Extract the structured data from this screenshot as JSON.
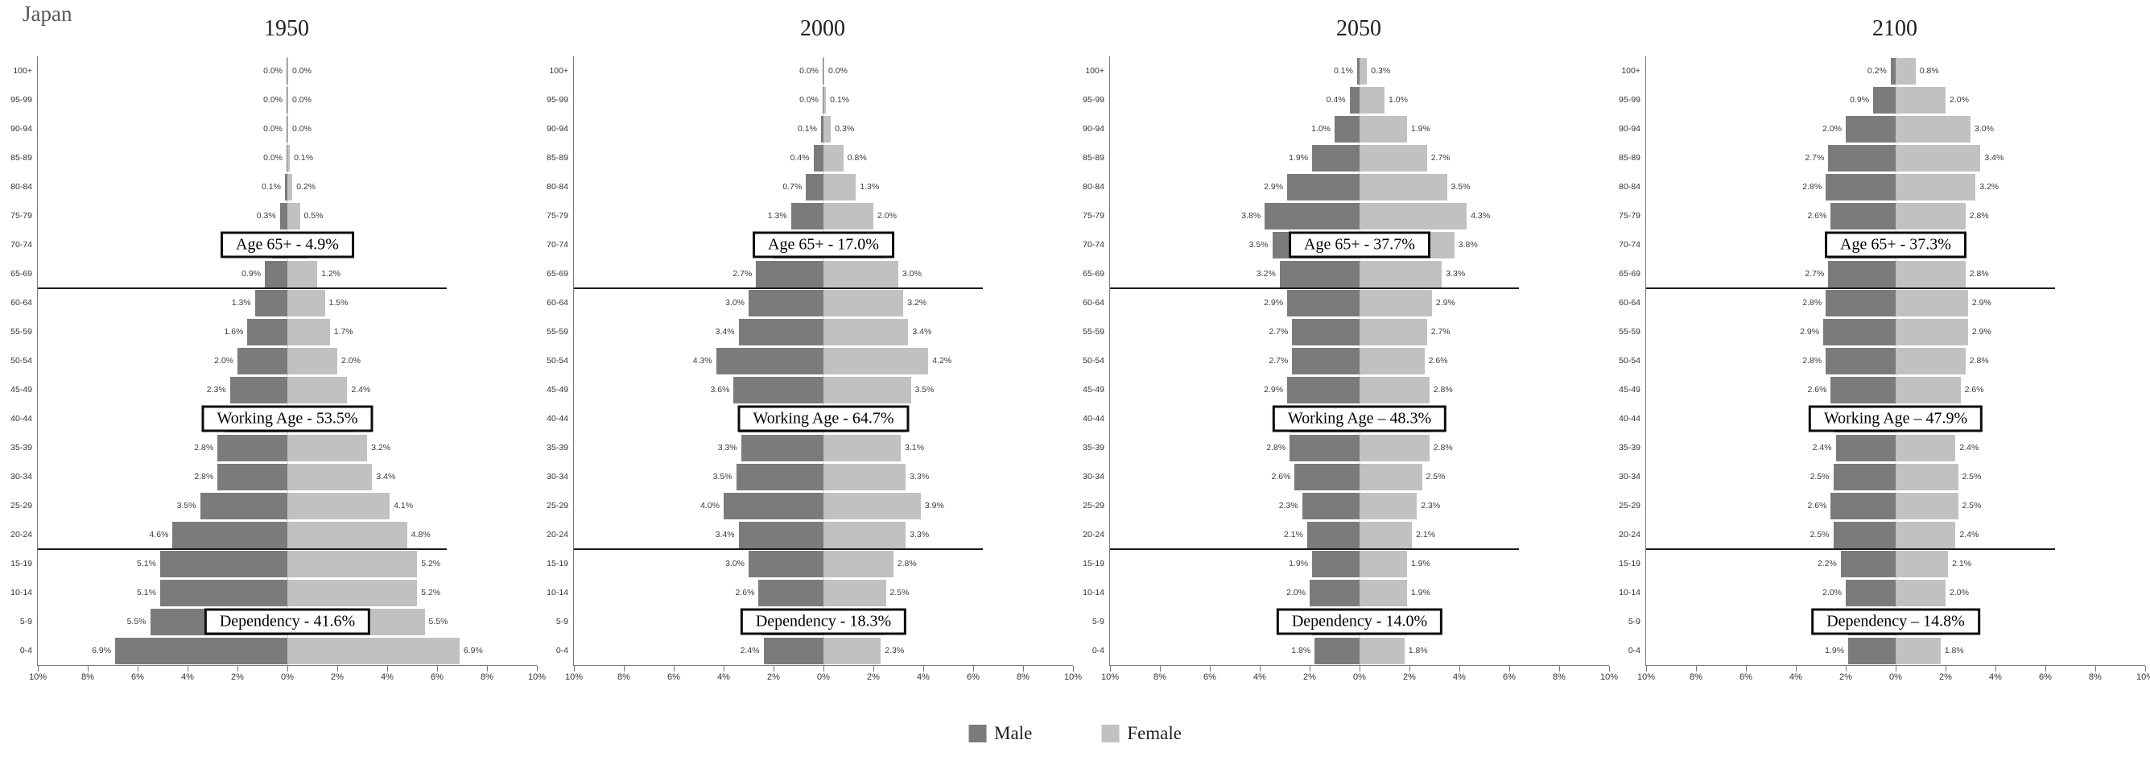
{
  "figure_title": "Japan",
  "colors": {
    "male": "#7b7b7b",
    "female": "#c1c1c1",
    "annotation_border": "#0d0d0d",
    "axis": "#7a7a7a",
    "text": "#333333"
  },
  "legend": {
    "male_label": "Male",
    "female_label": "Female"
  },
  "axis": {
    "x_tick_labels": [
      "10%",
      "8%",
      "6%",
      "4%",
      "2%",
      "0%",
      "2%",
      "4%",
      "6%",
      "8%",
      "10%"
    ],
    "x_max_percent": 10
  },
  "chart_data": {
    "type": "bar",
    "subtype": "population-pyramid",
    "unit": "percent of total population",
    "age_groups_top_to_bottom": [
      "100+",
      "95-99",
      "90-94",
      "85-89",
      "80-84",
      "75-79",
      "70-74",
      "65-69",
      "60-64",
      "55-59",
      "50-54",
      "45-49",
      "40-44",
      "35-39",
      "30-34",
      "25-29",
      "20-24",
      "15-19",
      "10-14",
      "5-9",
      "0-4"
    ],
    "annotation_rows": {
      "age65": 6,
      "working_age": 12,
      "dependency": 19
    },
    "separator_after_rows": [
      7,
      16
    ],
    "panels": [
      {
        "year": "1950",
        "annotations": {
          "age65": "Age 65+ - 4.9%",
          "working_age": "Working Age - 53.5%",
          "dependency": "Dependency -  41.6%"
        },
        "male": [
          0.0,
          0.0,
          0.0,
          0.0,
          0.1,
          0.3,
          0.6,
          0.9,
          1.3,
          1.6,
          2.0,
          2.3,
          2.5,
          2.8,
          2.8,
          3.5,
          4.6,
          5.1,
          5.1,
          5.5,
          6.9
        ],
        "female": [
          0.0,
          0.0,
          0.0,
          0.1,
          0.2,
          0.5,
          0.8,
          1.2,
          1.5,
          1.7,
          2.0,
          2.4,
          2.7,
          3.2,
          3.4,
          4.1,
          4.8,
          5.2,
          5.2,
          5.5,
          6.9
        ],
        "male_labels": [
          "0.0%",
          "0.0%",
          "0.0%",
          "0.0%",
          "0.1%",
          "0.3%",
          "",
          "0.9%",
          "1.3%",
          "1.6%",
          "2.0%",
          "2.3%",
          "",
          "2.8%",
          "2.8%",
          "3.5%",
          "4.6%",
          "5.1%",
          "5.1%",
          "5.5%",
          "6.9%"
        ],
        "female_labels": [
          "0.0%",
          "0.0%",
          "0.0%",
          "0.1%",
          "0.2%",
          "0.5%",
          "",
          "1.2%",
          "1.5%",
          "1.7%",
          "2.0%",
          "2.4%",
          "",
          "3.2%",
          "3.4%",
          "4.1%",
          "4.8%",
          "5.2%",
          "5.2%",
          "5.5%",
          "6.9%"
        ]
      },
      {
        "year": "2000",
        "annotations": {
          "age65": "Age 65+ - 17.0%",
          "working_age": "Working Age - 64.7%",
          "dependency": "Dependency - 18.3%"
        },
        "male": [
          0.0,
          0.0,
          0.1,
          0.4,
          0.7,
          1.3,
          2.0,
          2.7,
          3.0,
          3.4,
          4.3,
          3.6,
          3.4,
          3.3,
          3.5,
          4.0,
          3.4,
          3.0,
          2.6,
          2.5,
          2.4
        ],
        "female": [
          0.0,
          0.1,
          0.3,
          0.8,
          1.3,
          2.0,
          2.5,
          3.0,
          3.2,
          3.4,
          4.2,
          3.5,
          3.3,
          3.1,
          3.3,
          3.9,
          3.3,
          2.8,
          2.5,
          2.4,
          2.3
        ],
        "male_labels": [
          "0.0%",
          "0.0%",
          "0.1%",
          "0.4%",
          "0.7%",
          "1.3%",
          "",
          "2.7%",
          "3.0%",
          "3.4%",
          "4.3%",
          "3.6%",
          "",
          "3.3%",
          "3.5%",
          "4.0%",
          "3.4%",
          "3.0%",
          "2.6%",
          "",
          "2.4%"
        ],
        "female_labels": [
          "0.0%",
          "0.1%",
          "0.3%",
          "0.8%",
          "1.3%",
          "2.0%",
          "",
          "3.0%",
          "3.2%",
          "3.4%",
          "4.2%",
          "3.5%",
          "",
          "3.1%",
          "3.3%",
          "3.9%",
          "3.3%",
          "2.8%",
          "2.5%",
          "",
          "2.3%"
        ]
      },
      {
        "year": "2050",
        "annotations": {
          "age65": "Age 65+ - 37.7%",
          "working_age": "Working Age – 48.3%",
          "dependency": "Dependency - 14.0%"
        },
        "male": [
          0.1,
          0.4,
          1.0,
          1.9,
          2.9,
          3.8,
          3.5,
          3.2,
          2.9,
          2.7,
          2.7,
          2.9,
          2.8,
          2.8,
          2.6,
          2.3,
          2.1,
          1.9,
          2.0,
          1.9,
          1.8
        ],
        "female": [
          0.3,
          1.0,
          1.9,
          2.7,
          3.5,
          4.3,
          3.8,
          3.3,
          2.9,
          2.7,
          2.6,
          2.8,
          2.8,
          2.8,
          2.5,
          2.3,
          2.1,
          1.9,
          1.9,
          1.9,
          1.8
        ],
        "male_labels": [
          "0.1%",
          "0.4%",
          "1.0%",
          "1.9%",
          "2.9%",
          "3.8%",
          "3.5%",
          "3.2%",
          "2.9%",
          "2.7%",
          "2.7%",
          "2.9%",
          "",
          "2.8%",
          "2.6%",
          "2.3%",
          "2.1%",
          "1.9%",
          "2.0%",
          "",
          "1.8%"
        ],
        "female_labels": [
          "0.3%",
          "1.0%",
          "1.9%",
          "2.7%",
          "3.5%",
          "4.3%",
          "3.8%",
          "3.3%",
          "2.9%",
          "2.7%",
          "2.6%",
          "2.8%",
          "",
          "2.8%",
          "2.5%",
          "2.3%",
          "2.1%",
          "1.9%",
          "1.9%",
          "",
          "1.8%"
        ]
      },
      {
        "year": "2100",
        "annotations": {
          "age65": "Age 65+ - 37.3%",
          "working_age": "Working Age – 47.9%",
          "dependency": "Dependency – 14.8%"
        },
        "male": [
          0.2,
          0.9,
          2.0,
          2.7,
          2.8,
          2.6,
          2.7,
          2.7,
          2.8,
          2.9,
          2.8,
          2.6,
          2.5,
          2.4,
          2.5,
          2.6,
          2.5,
          2.2,
          2.0,
          1.9,
          1.9
        ],
        "female": [
          0.8,
          2.0,
          3.0,
          3.4,
          3.2,
          2.8,
          2.8,
          2.8,
          2.9,
          2.9,
          2.8,
          2.6,
          2.5,
          2.4,
          2.5,
          2.5,
          2.4,
          2.1,
          2.0,
          1.9,
          1.8
        ],
        "male_labels": [
          "0.2%",
          "0.9%",
          "2.0%",
          "2.7%",
          "2.8%",
          "2.6%",
          "",
          "2.7%",
          "2.8%",
          "2.9%",
          "2.8%",
          "2.6%",
          "",
          "2.4%",
          "2.5%",
          "2.6%",
          "2.5%",
          "2.2%",
          "2.0%",
          "",
          "1.9%"
        ],
        "female_labels": [
          "0.8%",
          "2.0%",
          "3.0%",
          "3.4%",
          "3.2%",
          "2.8%",
          "",
          "2.8%",
          "2.9%",
          "2.9%",
          "2.8%",
          "2.6%",
          "",
          "2.4%",
          "2.5%",
          "2.5%",
          "2.4%",
          "2.1%",
          "2.0%",
          "",
          "1.8%"
        ]
      }
    ]
  }
}
